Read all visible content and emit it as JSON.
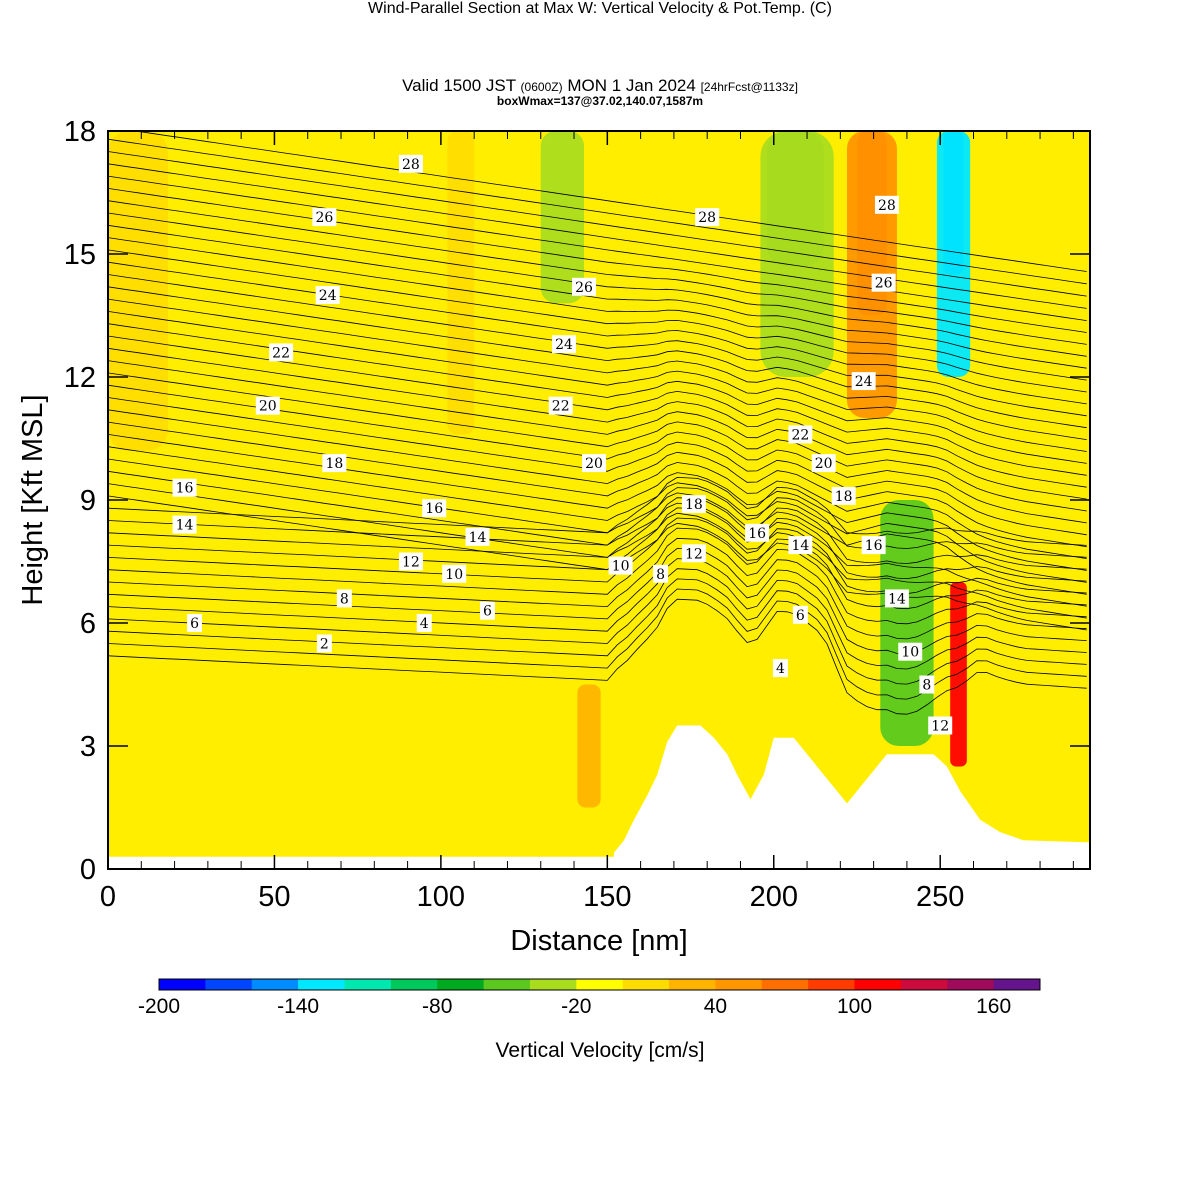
{
  "header": {
    "title": "Wind-Parallel Section at Max W: Vertical Velocity & Pot.Temp.",
    "title_mark": "(C)",
    "valid_prefix": "Valid 1500 JST",
    "valid_utc": "(0600Z)",
    "valid_date": "MON 1 Jan 2024",
    "valid_fcst": "[24hrFcst@1133z]",
    "box_info": "boxWmax=137@37.02,140.07,1587m"
  },
  "chart_data": {
    "type": "heatmap",
    "xlabel": "Distance [nm]",
    "ylabel": "Height [Kft MSL]",
    "xlim": [
      0,
      295
    ],
    "ylim": [
      0,
      18
    ],
    "x_ticks": [
      "0",
      "50",
      "100",
      "150",
      "200",
      "250"
    ],
    "x_tick_values": [
      0,
      50,
      100,
      150,
      200,
      250
    ],
    "y_ticks": [
      "0",
      "3",
      "6",
      "9",
      "12",
      "15",
      "18"
    ],
    "y_tick_values": [
      0,
      3,
      6,
      9,
      12,
      15,
      18
    ],
    "background_color": "#ffee00",
    "colorbar": {
      "label": "Vertical Velocity [cm/s]",
      "tick_labels": [
        "-200",
        "-140",
        "-80",
        "-20",
        "40",
        "100",
        "160"
      ],
      "tick_values": [
        -200,
        -140,
        -80,
        -20,
        40,
        100,
        160
      ],
      "range": [
        -200,
        180
      ],
      "colors": [
        "#0000ff",
        "#0046ff",
        "#008cff",
        "#00e8ff",
        "#00e8b0",
        "#00c85a",
        "#00aa1e",
        "#5ac81e",
        "#aadc1e",
        "#ffff00",
        "#ffdc00",
        "#ffb400",
        "#ff9600",
        "#ff6e00",
        "#ff3c00",
        "#ff0000",
        "#cd0a3c",
        "#a00a5a",
        "#64148c"
      ]
    },
    "terrain_profile": [
      [
        152,
        0.4
      ],
      [
        155,
        0.7
      ],
      [
        158,
        1.2
      ],
      [
        162,
        1.8
      ],
      [
        165,
        2.3
      ],
      [
        168,
        3.1
      ],
      [
        171,
        3.5
      ],
      [
        178,
        3.5
      ],
      [
        182,
        3.2
      ],
      [
        186,
        2.8
      ],
      [
        189,
        2.3
      ],
      [
        193,
        1.7
      ],
      [
        197,
        2.3
      ],
      [
        200,
        3.2
      ],
      [
        206,
        3.2
      ],
      [
        210,
        2.8
      ],
      [
        214,
        2.4
      ],
      [
        218,
        2.0
      ],
      [
        222,
        1.6
      ],
      [
        226,
        2.0
      ],
      [
        230,
        2.4
      ],
      [
        234,
        2.8
      ],
      [
        239,
        2.8
      ],
      [
        244,
        2.8
      ],
      [
        248,
        2.8
      ],
      [
        252,
        2.5
      ],
      [
        256,
        1.9
      ],
      [
        262,
        1.2
      ],
      [
        268,
        0.9
      ],
      [
        275,
        0.7
      ],
      [
        295,
        0.65
      ]
    ],
    "velocity_regions": [
      {
        "name": "updraft-0-west",
        "color": "#ffdc00",
        "x": [
          0,
          18
        ],
        "y": [
          10.2,
          18
        ]
      },
      {
        "name": "updraft-100",
        "color": "#ffdc00",
        "x": [
          102,
          110
        ],
        "y": [
          10.6,
          18
        ]
      },
      {
        "name": "updraft-140-low",
        "color": "#ffb400",
        "x": [
          141,
          148
        ],
        "y": [
          1.5,
          4.5
        ]
      },
      {
        "name": "downdraft-137",
        "color": "#aadc1e",
        "x": [
          130,
          143
        ],
        "y": [
          13.8,
          18
        ]
      },
      {
        "name": "downdraft-205",
        "color": "#5ac81e",
        "x": [
          198,
          215
        ],
        "y": [
          14.7,
          18
        ]
      },
      {
        "name": "downdraft-205-outer",
        "color": "#aadc1e",
        "x": [
          196,
          218
        ],
        "y": [
          12,
          18
        ]
      },
      {
        "name": "updraft-228",
        "color": "#ff3c00",
        "x": [
          225,
          234
        ],
        "y": [
          13.5,
          18
        ]
      },
      {
        "name": "updraft-228-outer",
        "color": "#ff9600",
        "x": [
          222,
          237
        ],
        "y": [
          11,
          18
        ]
      },
      {
        "name": "downdraft-255",
        "color": "#008cff",
        "x": [
          251,
          257
        ],
        "y": [
          14.5,
          18
        ]
      },
      {
        "name": "downdraft-255-outer",
        "color": "#00e8ff",
        "x": [
          249,
          259
        ],
        "y": [
          12,
          18
        ]
      },
      {
        "name": "downdraft-240-lee",
        "color": "#5ac81e",
        "x": [
          232,
          248
        ],
        "y": [
          3,
          9
        ]
      },
      {
        "name": "updraft-255-lee",
        "color": "#ff0000",
        "x": [
          253,
          258
        ],
        "y": [
          2.5,
          7
        ]
      }
    ],
    "theta_contour_labels": [
      {
        "text": "28",
        "x": 91,
        "y": 17.2
      },
      {
        "text": "26",
        "x": 65,
        "y": 15.9
      },
      {
        "text": "24",
        "x": 66,
        "y": 14.0
      },
      {
        "text": "22",
        "x": 52,
        "y": 12.6
      },
      {
        "text": "20",
        "x": 48,
        "y": 11.3
      },
      {
        "text": "18",
        "x": 68,
        "y": 9.9
      },
      {
        "text": "16",
        "x": 23,
        "y": 9.3
      },
      {
        "text": "14",
        "x": 23,
        "y": 8.4
      },
      {
        "text": "16",
        "x": 98,
        "y": 8.8
      },
      {
        "text": "14",
        "x": 111,
        "y": 8.1
      },
      {
        "text": "12",
        "x": 91,
        "y": 7.5
      },
      {
        "text": "10",
        "x": 104,
        "y": 7.2
      },
      {
        "text": "8",
        "x": 71,
        "y": 6.6
      },
      {
        "text": "6",
        "x": 26,
        "y": 6.0
      },
      {
        "text": "4",
        "x": 95,
        "y": 6.0
      },
      {
        "text": "6",
        "x": 114,
        "y": 6.3
      },
      {
        "text": "2",
        "x": 65,
        "y": 5.5
      },
      {
        "text": "28",
        "x": 180,
        "y": 15.9
      },
      {
        "text": "26",
        "x": 143,
        "y": 14.2
      },
      {
        "text": "24",
        "x": 137,
        "y": 12.8
      },
      {
        "text": "22",
        "x": 136,
        "y": 11.3
      },
      {
        "text": "20",
        "x": 146,
        "y": 9.9
      },
      {
        "text": "18",
        "x": 176,
        "y": 8.9
      },
      {
        "text": "16",
        "x": 195,
        "y": 8.2
      },
      {
        "text": "12",
        "x": 176,
        "y": 7.7
      },
      {
        "text": "10",
        "x": 154,
        "y": 7.4
      },
      {
        "text": "8",
        "x": 166,
        "y": 7.2
      },
      {
        "text": "14",
        "x": 208,
        "y": 7.9
      },
      {
        "text": "6",
        "x": 208,
        "y": 6.2
      },
      {
        "text": "4",
        "x": 202,
        "y": 4.9
      },
      {
        "text": "22",
        "x": 208,
        "y": 10.6
      },
      {
        "text": "20",
        "x": 215,
        "y": 9.9
      },
      {
        "text": "18",
        "x": 221,
        "y": 9.1
      },
      {
        "text": "16",
        "x": 230,
        "y": 7.9
      },
      {
        "text": "14",
        "x": 237,
        "y": 6.6
      },
      {
        "text": "10",
        "x": 241,
        "y": 5.3
      },
      {
        "text": "8",
        "x": 246,
        "y": 4.5
      },
      {
        "text": "12",
        "x": 250,
        "y": 3.5
      },
      {
        "text": "24",
        "x": 227,
        "y": 11.9
      },
      {
        "text": "26",
        "x": 233,
        "y": 14.3
      },
      {
        "text": "28",
        "x": 234,
        "y": 16.2
      }
    ]
  }
}
